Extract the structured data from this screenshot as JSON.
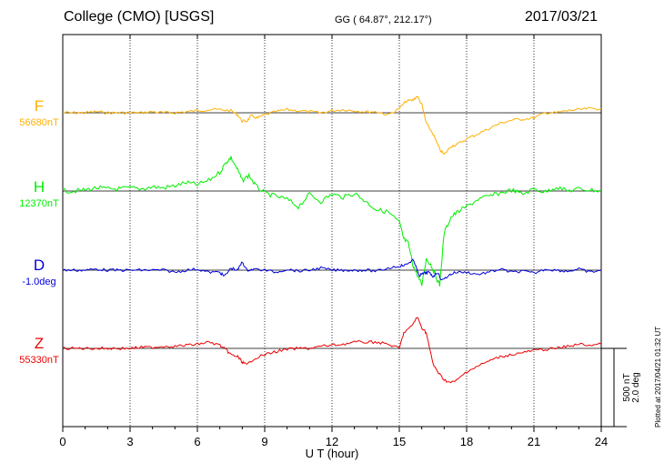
{
  "header": {
    "station": "College (CMO)  [USGS]",
    "coords": "GG ( 64.87°, 212.17°)",
    "date": "2017/03/21"
  },
  "plotted_note": "Plotted at 2017/04/21 01:32 UT",
  "scale_labels": [
    "500 nT",
    "2.0 deg"
  ],
  "colors": {
    "F": "#ffb000",
    "H": "#00ee00",
    "D": "#0000dd",
    "Z": "#ee0000"
  },
  "chart_data": {
    "type": "line",
    "xlabel": "U T (hour)",
    "xlim": [
      0,
      24
    ],
    "xticks": [
      "0",
      "3",
      "6",
      "9",
      "12",
      "15",
      "18",
      "21",
      "24"
    ],
    "grid": true,
    "series": [
      {
        "name": "F",
        "baseline_label": "56680nT",
        "x": [
          0,
          0.5,
          1,
          1.5,
          2,
          2.5,
          3,
          3.5,
          4,
          4.5,
          5,
          5.5,
          6,
          6.5,
          7,
          7.5,
          7.8,
          8.0,
          8.2,
          8.4,
          8.7,
          9,
          9.5,
          10,
          10.5,
          11,
          11.5,
          12,
          12.5,
          13,
          13.5,
          14,
          14.5,
          15,
          15.3,
          15.6,
          15.8,
          16.0,
          16.2,
          16.5,
          16.8,
          17.0,
          17.3,
          17.6,
          18,
          18.5,
          19,
          19.5,
          20,
          20.5,
          21,
          21.5,
          22,
          22.5,
          23,
          23.5,
          24
        ],
        "values": [
          0,
          0,
          0,
          10,
          0,
          0,
          0,
          0,
          10,
          0,
          0,
          10,
          20,
          30,
          30,
          20,
          -20,
          -80,
          -80,
          -30,
          -50,
          -20,
          10,
          30,
          20,
          10,
          0,
          20,
          30,
          20,
          10,
          10,
          -20,
          40,
          110,
          120,
          160,
          80,
          -100,
          -200,
          -350,
          -400,
          -320,
          -300,
          -250,
          -200,
          -150,
          -100,
          -70,
          -60,
          -50,
          0,
          0,
          20,
          30,
          40,
          40
        ]
      },
      {
        "name": "H",
        "baseline_label": "12370nT",
        "x": [
          0,
          0.5,
          1,
          1.5,
          2,
          2.5,
          3,
          3.5,
          4,
          4.5,
          5,
          5.5,
          6,
          6.5,
          7,
          7.3,
          7.5,
          7.8,
          8,
          8.3,
          8.6,
          9,
          9.5,
          10,
          10.5,
          11,
          11.5,
          12,
          12.5,
          13,
          13.5,
          14,
          14.5,
          15,
          15.2,
          15.4,
          15.6,
          15.8,
          16,
          16.2,
          16.4,
          16.6,
          16.8,
          17,
          17.3,
          17.6,
          18,
          18.5,
          19,
          19.5,
          20,
          20.5,
          21,
          21.5,
          22,
          22.5,
          23,
          23.5,
          24
        ],
        "values": [
          0,
          0,
          10,
          30,
          20,
          20,
          30,
          20,
          40,
          30,
          50,
          80,
          60,
          100,
          180,
          280,
          320,
          200,
          100,
          150,
          50,
          -20,
          -50,
          -80,
          -150,
          -30,
          -100,
          -30,
          -60,
          -20,
          -100,
          -180,
          -200,
          -300,
          -460,
          -500,
          -700,
          -800,
          -900,
          -650,
          -700,
          -800,
          -900,
          -400,
          -250,
          -200,
          -150,
          -80,
          -50,
          -20,
          10,
          -30,
          20,
          -10,
          40,
          0,
          20,
          10,
          0
        ]
      },
      {
        "name": "D",
        "baseline_label": "-1.0deg",
        "x": [
          0,
          0.5,
          1,
          1.5,
          2,
          2.5,
          3,
          3.5,
          4,
          4.5,
          5,
          5.5,
          6,
          6.5,
          7,
          7.2,
          7.5,
          7.8,
          8.0,
          8.2,
          8.5,
          9,
          9.5,
          10,
          10.5,
          11,
          11.5,
          12,
          12.5,
          13,
          13.5,
          14,
          14.5,
          15,
          15.3,
          15.6,
          15.9,
          16.1,
          16.3,
          16.5,
          16.7,
          16.9,
          17.2,
          17.5,
          18,
          18.5,
          19,
          19.5,
          20,
          20.5,
          21,
          21.5,
          22,
          22.5,
          23,
          23.5,
          24
        ],
        "values": [
          0,
          0,
          0,
          10,
          0,
          0,
          0,
          0,
          0,
          0,
          -20,
          0,
          10,
          -20,
          -20,
          -60,
          20,
          0,
          80,
          0,
          10,
          0,
          -20,
          10,
          -10,
          0,
          20,
          0,
          0,
          0,
          0,
          -10,
          20,
          40,
          50,
          100,
          -50,
          -30,
          -20,
          -60,
          -20,
          -100,
          -50,
          -20,
          -20,
          -40,
          -20,
          10,
          -20,
          -10,
          -30,
          10,
          0,
          -10,
          10,
          -20,
          0
        ]
      },
      {
        "name": "Z",
        "baseline_label": "55330nT",
        "x": [
          0,
          0.5,
          1,
          1.5,
          2,
          2.5,
          3,
          3.5,
          4,
          4.5,
          5,
          5.5,
          6,
          6.5,
          7,
          7.3,
          7.5,
          7.8,
          8.0,
          8.2,
          8.5,
          9,
          9.5,
          10,
          10.5,
          11,
          11.5,
          12,
          12.5,
          13,
          13.5,
          14,
          14.5,
          15,
          15.2,
          15.5,
          15.8,
          16.0,
          16.2,
          16.5,
          16.8,
          17,
          17.3,
          17.6,
          18,
          18.5,
          19,
          19.5,
          20,
          20.5,
          21,
          21.5,
          22,
          22.5,
          23,
          23.5,
          24
        ],
        "values": [
          0,
          0,
          0,
          0,
          0,
          0,
          0,
          10,
          10,
          20,
          20,
          30,
          40,
          60,
          30,
          -20,
          -60,
          -80,
          -130,
          -160,
          -100,
          -60,
          -30,
          -10,
          0,
          0,
          20,
          30,
          40,
          60,
          60,
          60,
          40,
          0,
          150,
          200,
          300,
          200,
          150,
          -150,
          -250,
          -300,
          -330,
          -300,
          -220,
          -170,
          -120,
          -80,
          -60,
          -40,
          -20,
          -10,
          0,
          20,
          40,
          30,
          40
        ]
      }
    ]
  }
}
